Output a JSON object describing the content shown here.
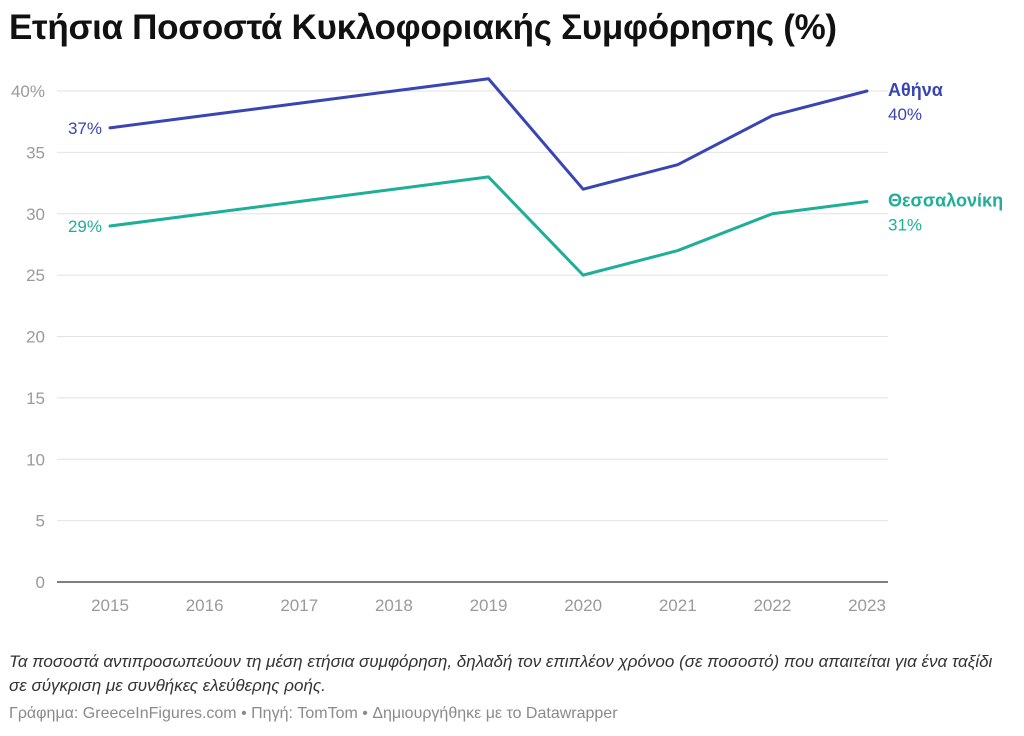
{
  "title": "Ετήσια Ποσοστά Κυκλοφοριακής Συμφόρησης (%)",
  "notes": "Τα ποσοστά αντιπροσωπεύουν τη μέση ετήσια συμφόρηση, δηλαδή τον επιπλέον χρόνοο (σε ποσοστό) που απαιτείται για ένα ταξίδι σε σύγκριση με συνθήκες ελεύθερης ροής.",
  "source": "Γράφημα: GreeceInFigures.com • Πηγή: TomTom • Δημιουργήθηκε με το Datawrapper",
  "chart_data": {
    "type": "line",
    "title": "Ετήσια Ποσοστά Κυκλοφοριακής Συμφόρησης (%)",
    "x": [
      "2015",
      "2016",
      "2017",
      "2018",
      "2019",
      "2020",
      "2021",
      "2022",
      "2023"
    ],
    "ylim": [
      0,
      40
    ],
    "yticks": [
      0,
      5,
      10,
      15,
      20,
      25,
      30,
      35,
      40
    ],
    "ytick_labels": [
      "0",
      "5",
      "10",
      "15",
      "20",
      "25",
      "30",
      "35",
      "40%"
    ],
    "grid": true,
    "series": [
      {
        "name": "Αθήνα",
        "color": "#3a45b4",
        "values": [
          37,
          38,
          39,
          40,
          41,
          32,
          34,
          38,
          40
        ],
        "start_label": "37%",
        "end_label": "40%"
      },
      {
        "name": "Θεσσαλονίκη",
        "color": "#1fae98",
        "values": [
          29,
          30,
          31,
          32,
          33,
          25,
          27,
          30,
          31
        ],
        "start_label": "29%",
        "end_label": "31%"
      }
    ]
  }
}
